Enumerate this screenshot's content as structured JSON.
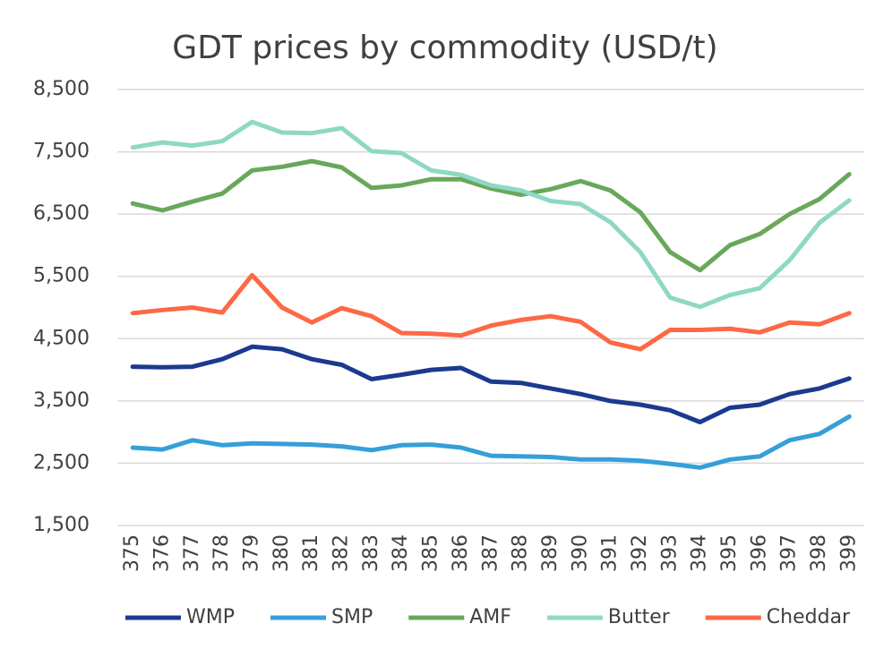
{
  "chart_data": {
    "type": "line",
    "title": "GDT prices by commodity (USD/t)",
    "categories": [
      "375",
      "376",
      "377",
      "378",
      "379",
      "380",
      "381",
      "382",
      "383",
      "384",
      "385",
      "386",
      "387",
      "388",
      "389",
      "390",
      "391",
      "392",
      "393",
      "394",
      "395",
      "396",
      "397",
      "398",
      "399"
    ],
    "series": [
      {
        "name": "WMP",
        "color": "#1b3a8f",
        "values": [
          4050,
          4040,
          4050,
          4170,
          4370,
          4330,
          4170,
          4080,
          3850,
          3920,
          4000,
          4030,
          3810,
          3790,
          3700,
          3610,
          3500,
          3440,
          3350,
          3160,
          3390,
          3440,
          3610,
          3700,
          3860
        ]
      },
      {
        "name": "SMP",
        "color": "#359fd9",
        "values": [
          2750,
          2720,
          2870,
          2790,
          2820,
          2810,
          2800,
          2770,
          2710,
          2790,
          2800,
          2750,
          2620,
          2610,
          2600,
          2560,
          2560,
          2540,
          2490,
          2430,
          2560,
          2610,
          2870,
          2970,
          3250
        ]
      },
      {
        "name": "AMF",
        "color": "#69a85a",
        "values": [
          6670,
          6560,
          6700,
          6830,
          7200,
          7260,
          7350,
          7250,
          6920,
          6960,
          7060,
          7060,
          6910,
          6810,
          6900,
          7030,
          6880,
          6530,
          5890,
          5600,
          6000,
          6180,
          6500,
          6740,
          7140
        ]
      },
      {
        "name": "Butter",
        "color": "#8ed8c5",
        "values": [
          7570,
          7650,
          7600,
          7670,
          7980,
          7810,
          7800,
          7880,
          7510,
          7480,
          7200,
          7130,
          6960,
          6880,
          6710,
          6660,
          6370,
          5890,
          5160,
          5010,
          5200,
          5310,
          5760,
          6360,
          6720
        ]
      },
      {
        "name": "Cheddar",
        "color": "#fd6845",
        "values": [
          4910,
          4960,
          5000,
          4920,
          5520,
          5000,
          4760,
          4990,
          4860,
          4590,
          4580,
          4550,
          4710,
          4800,
          4860,
          4770,
          4440,
          4330,
          4640,
          4640,
          4660,
          4600,
          4760,
          4730,
          4910
        ]
      }
    ],
    "ylim": [
      1500,
      8500
    ],
    "yticks": [
      {
        "value": 1500,
        "label": "1,500"
      },
      {
        "value": 2500,
        "label": "2,500"
      },
      {
        "value": 3500,
        "label": "3,500"
      },
      {
        "value": 4500,
        "label": "4,500"
      },
      {
        "value": 5500,
        "label": "5,500"
      },
      {
        "value": 6500,
        "label": "6,500"
      },
      {
        "value": 7500,
        "label": "7,500"
      },
      {
        "value": 8500,
        "label": "8,500"
      }
    ],
    "grid": true,
    "legend": "bottom"
  }
}
